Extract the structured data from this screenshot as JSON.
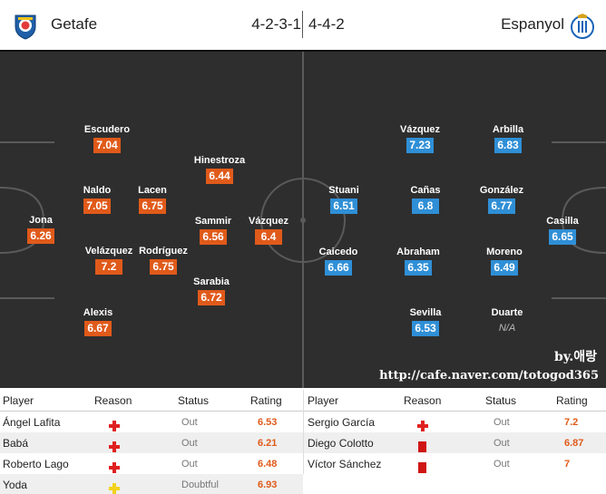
{
  "header": {
    "home_team": "Getafe",
    "away_team": "Espanyol",
    "home_formation": "4-2-3-1",
    "away_formation": "4-4-2",
    "home_crest_icon": "getafe-crest-icon",
    "away_crest_icon": "espanyol-crest-icon"
  },
  "colors": {
    "home_rating": "#e05a1a",
    "away_rating": "#2f8fd6",
    "injury": "#e02020",
    "doubtful": "#f2d21b",
    "suspension": "#d01515"
  },
  "lineup": {
    "home": [
      {
        "name": "Jona",
        "rating": "6.26"
      },
      {
        "name": "Escudero",
        "rating": "7.04"
      },
      {
        "name": "Naldo",
        "rating": "7.05"
      },
      {
        "name": "Velázquez",
        "rating": "7.2"
      },
      {
        "name": "Alexis",
        "rating": "6.67"
      },
      {
        "name": "Lacen",
        "rating": "6.75"
      },
      {
        "name": "Rodríguez",
        "rating": "6.75"
      },
      {
        "name": "Hinestroza",
        "rating": "6.44"
      },
      {
        "name": "Sammir",
        "rating": "6.56"
      },
      {
        "name": "Sarabia",
        "rating": "6.72"
      },
      {
        "name": "Vázquez",
        "rating": "6.4"
      }
    ],
    "away": [
      {
        "name": "Stuani",
        "rating": "6.51"
      },
      {
        "name": "Caicedo",
        "rating": "6.66"
      },
      {
        "name": "Vázquez",
        "rating": "7.23"
      },
      {
        "name": "Cañas",
        "rating": "6.8"
      },
      {
        "name": "Abraham",
        "rating": "6.35"
      },
      {
        "name": "Sevilla",
        "rating": "6.53"
      },
      {
        "name": "Arbilla",
        "rating": "6.83"
      },
      {
        "name": "González",
        "rating": "6.77"
      },
      {
        "name": "Moreno",
        "rating": "6.49"
      },
      {
        "name": "Duarte",
        "rating": "N/A"
      },
      {
        "name": "Casilla",
        "rating": "6.65"
      }
    ]
  },
  "credit": "by.애랑",
  "url": "http://cafe.naver.com/totogod365",
  "absences": {
    "headers": {
      "player": "Player",
      "reason": "Reason",
      "status": "Status",
      "rating": "Rating"
    },
    "home": [
      {
        "player": "Ángel Lafita",
        "reason_icon": "injury-cross-icon",
        "status": "Out",
        "rating": "6.53"
      },
      {
        "player": "Babá",
        "reason_icon": "injury-cross-icon",
        "status": "Out",
        "rating": "6.21"
      },
      {
        "player": "Roberto Lago",
        "reason_icon": "injury-cross-icon",
        "status": "Out",
        "rating": "6.48"
      },
      {
        "player": "Yoda",
        "reason_icon": "doubtful-cross-icon",
        "status": "Doubtful",
        "rating": "6.93"
      }
    ],
    "away": [
      {
        "player": "Sergio García",
        "reason_icon": "injury-cross-icon",
        "status": "Out",
        "rating": "7.2"
      },
      {
        "player": "Diego Colotto",
        "reason_icon": "red-card-icon",
        "status": "Out",
        "rating": "6.87"
      },
      {
        "player": "Víctor Sánchez",
        "reason_icon": "red-card-icon",
        "status": "Out",
        "rating": "7"
      }
    ]
  }
}
